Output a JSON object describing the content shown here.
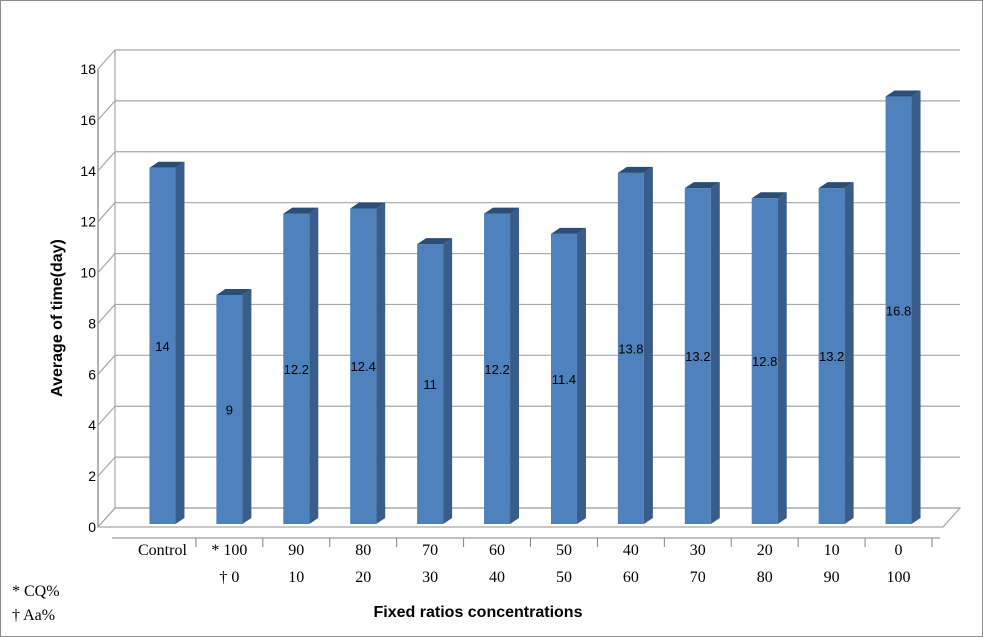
{
  "chart_data": {
    "type": "bar",
    "categories": [
      "Control",
      "100/0",
      "90/10",
      "80/20",
      "70/30",
      "60/40",
      "50/50",
      "40/60",
      "30/70",
      "20/80",
      "10/90",
      "0/100"
    ],
    "category_rows": {
      "row1": [
        "Control",
        "* 100",
        "90",
        "80",
        "70",
        "60",
        "50",
        "40",
        "30",
        "20",
        "10",
        "0"
      ],
      "row2": [
        "",
        "† 0",
        "10",
        "20",
        "30",
        "40",
        "50",
        "60",
        "70",
        "80",
        "90",
        "100"
      ]
    },
    "values": [
      14,
      9,
      12.2,
      12.4,
      11,
      12.2,
      11.4,
      13.8,
      13.2,
      12.8,
      13.2,
      16.8
    ],
    "data_labels": [
      "14",
      "9",
      "12.2",
      "12.4",
      "11",
      "12.2",
      "11.4",
      "13.8",
      "13.2",
      "12.8",
      "13.2",
      "16.8"
    ],
    "xlabel": "Fixed ratios concentrations",
    "ylabel": "Average of time(day)",
    "ylim": [
      0,
      18
    ],
    "yticks": [
      "0",
      "2",
      "4",
      "6",
      "8",
      "10",
      "12",
      "14",
      "16",
      "18"
    ],
    "grid": true,
    "style": "3d-column",
    "colors": {
      "bar_front": "#4F81BD",
      "bar_side": "#385D8A",
      "bar_top": "#2C4D75",
      "grid": "#A6A6A6"
    },
    "footnotes": [
      "* CQ%",
      "† Aa%"
    ]
  }
}
